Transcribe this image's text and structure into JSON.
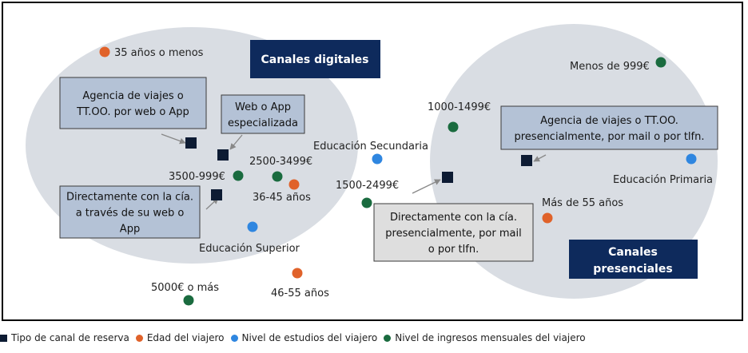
{
  "chart_data": {
    "type": "scatter",
    "headers": {
      "digital": "Canales digitales",
      "presencial_lines": [
        "Canales",
        "presenciales"
      ]
    },
    "callouts": [
      {
        "lines": [
          "Agencia de viajes o",
          "TT.OO. por web o App"
        ],
        "style": "blue"
      },
      {
        "lines": [
          "Web o App",
          "especializada"
        ],
        "style": "blue"
      },
      {
        "lines": [
          "Directamente con la cía.",
          "a través de su web o",
          "App"
        ],
        "style": "blue"
      },
      {
        "lines": [
          "Agencia de viajes o TT.OO.",
          "presencialmente, por mail o por tlfn."
        ],
        "style": "blue"
      },
      {
        "lines": [
          "Directamente con la cía.",
          "presencialmente, por mail",
          "o por tlfn."
        ],
        "style": "gray"
      }
    ],
    "series": [
      {
        "name": "Tipo de canal de reserva",
        "key": "canal",
        "color": "#0d1b33"
      },
      {
        "name": "Edad del viajero",
        "key": "edad",
        "color": "#e0622a"
      },
      {
        "name": "Nivel de estudios del viajero",
        "key": "estudios",
        "color": "#2f86e0"
      },
      {
        "name": "Nivel de ingresos mensuales del viajero",
        "key": "ingresos",
        "color": "#1a6b3f"
      }
    ],
    "points": [
      {
        "series": "edad",
        "label": "35 años o menos"
      },
      {
        "series": "edad",
        "label": "36-45 años"
      },
      {
        "series": "edad",
        "label": "46-55 años"
      },
      {
        "series": "edad",
        "label": "Más de 55 años"
      },
      {
        "series": "estudios",
        "label": "Educación Secundaria"
      },
      {
        "series": "estudios",
        "label": "Educación Superior"
      },
      {
        "series": "estudios",
        "label": "Educación Primaria"
      },
      {
        "series": "ingresos",
        "label": "Menos de 999€"
      },
      {
        "series": "ingresos",
        "label": "1000-1499€"
      },
      {
        "series": "ingresos",
        "label": "1500-2499€"
      },
      {
        "series": "ingresos",
        "label": "2500-3499€"
      },
      {
        "series": "ingresos",
        "label": "3500-999€"
      },
      {
        "series": "ingresos",
        "label": "5000€ o más"
      },
      {
        "series": "canal",
        "label": ""
      },
      {
        "series": "canal",
        "label": ""
      },
      {
        "series": "canal",
        "label": ""
      },
      {
        "series": "canal",
        "label": ""
      },
      {
        "series": "canal",
        "label": ""
      }
    ],
    "legend": "bottom"
  }
}
